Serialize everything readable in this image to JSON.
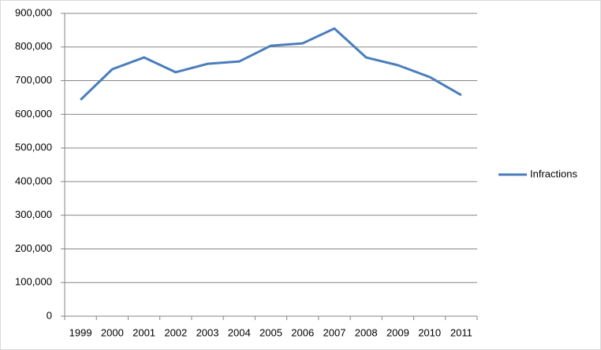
{
  "chart_data": {
    "type": "line",
    "categories": [
      "1999",
      "2000",
      "2001",
      "2002",
      "2003",
      "2004",
      "2005",
      "2006",
      "2007",
      "2008",
      "2009",
      "2010",
      "2011"
    ],
    "series": [
      {
        "name": "Infractions",
        "color": "#4a7ebb",
        "values": [
          643000,
          734000,
          769000,
          725000,
          750000,
          757000,
          804000,
          811000,
          855000,
          769000,
          746000,
          711000,
          657000
        ]
      }
    ],
    "ylim": [
      0,
      900000
    ],
    "yticks": [
      0,
      {
        "value": 100000,
        "label": "100,000"
      },
      {
        "value": 200000,
        "label": "200,000"
      },
      {
        "value": 300000,
        "label": "300,000"
      },
      {
        "value": 400000,
        "label": "400,000"
      },
      {
        "value": 500000,
        "label": "500,000"
      },
      {
        "value": 600000,
        "label": "600,000"
      },
      {
        "value": 700000,
        "label": "700,000"
      },
      {
        "value": 800000,
        "label": "800,000"
      },
      {
        "value": 900000,
        "label": "900,000"
      }
    ],
    "grid": true,
    "legend": "right"
  }
}
